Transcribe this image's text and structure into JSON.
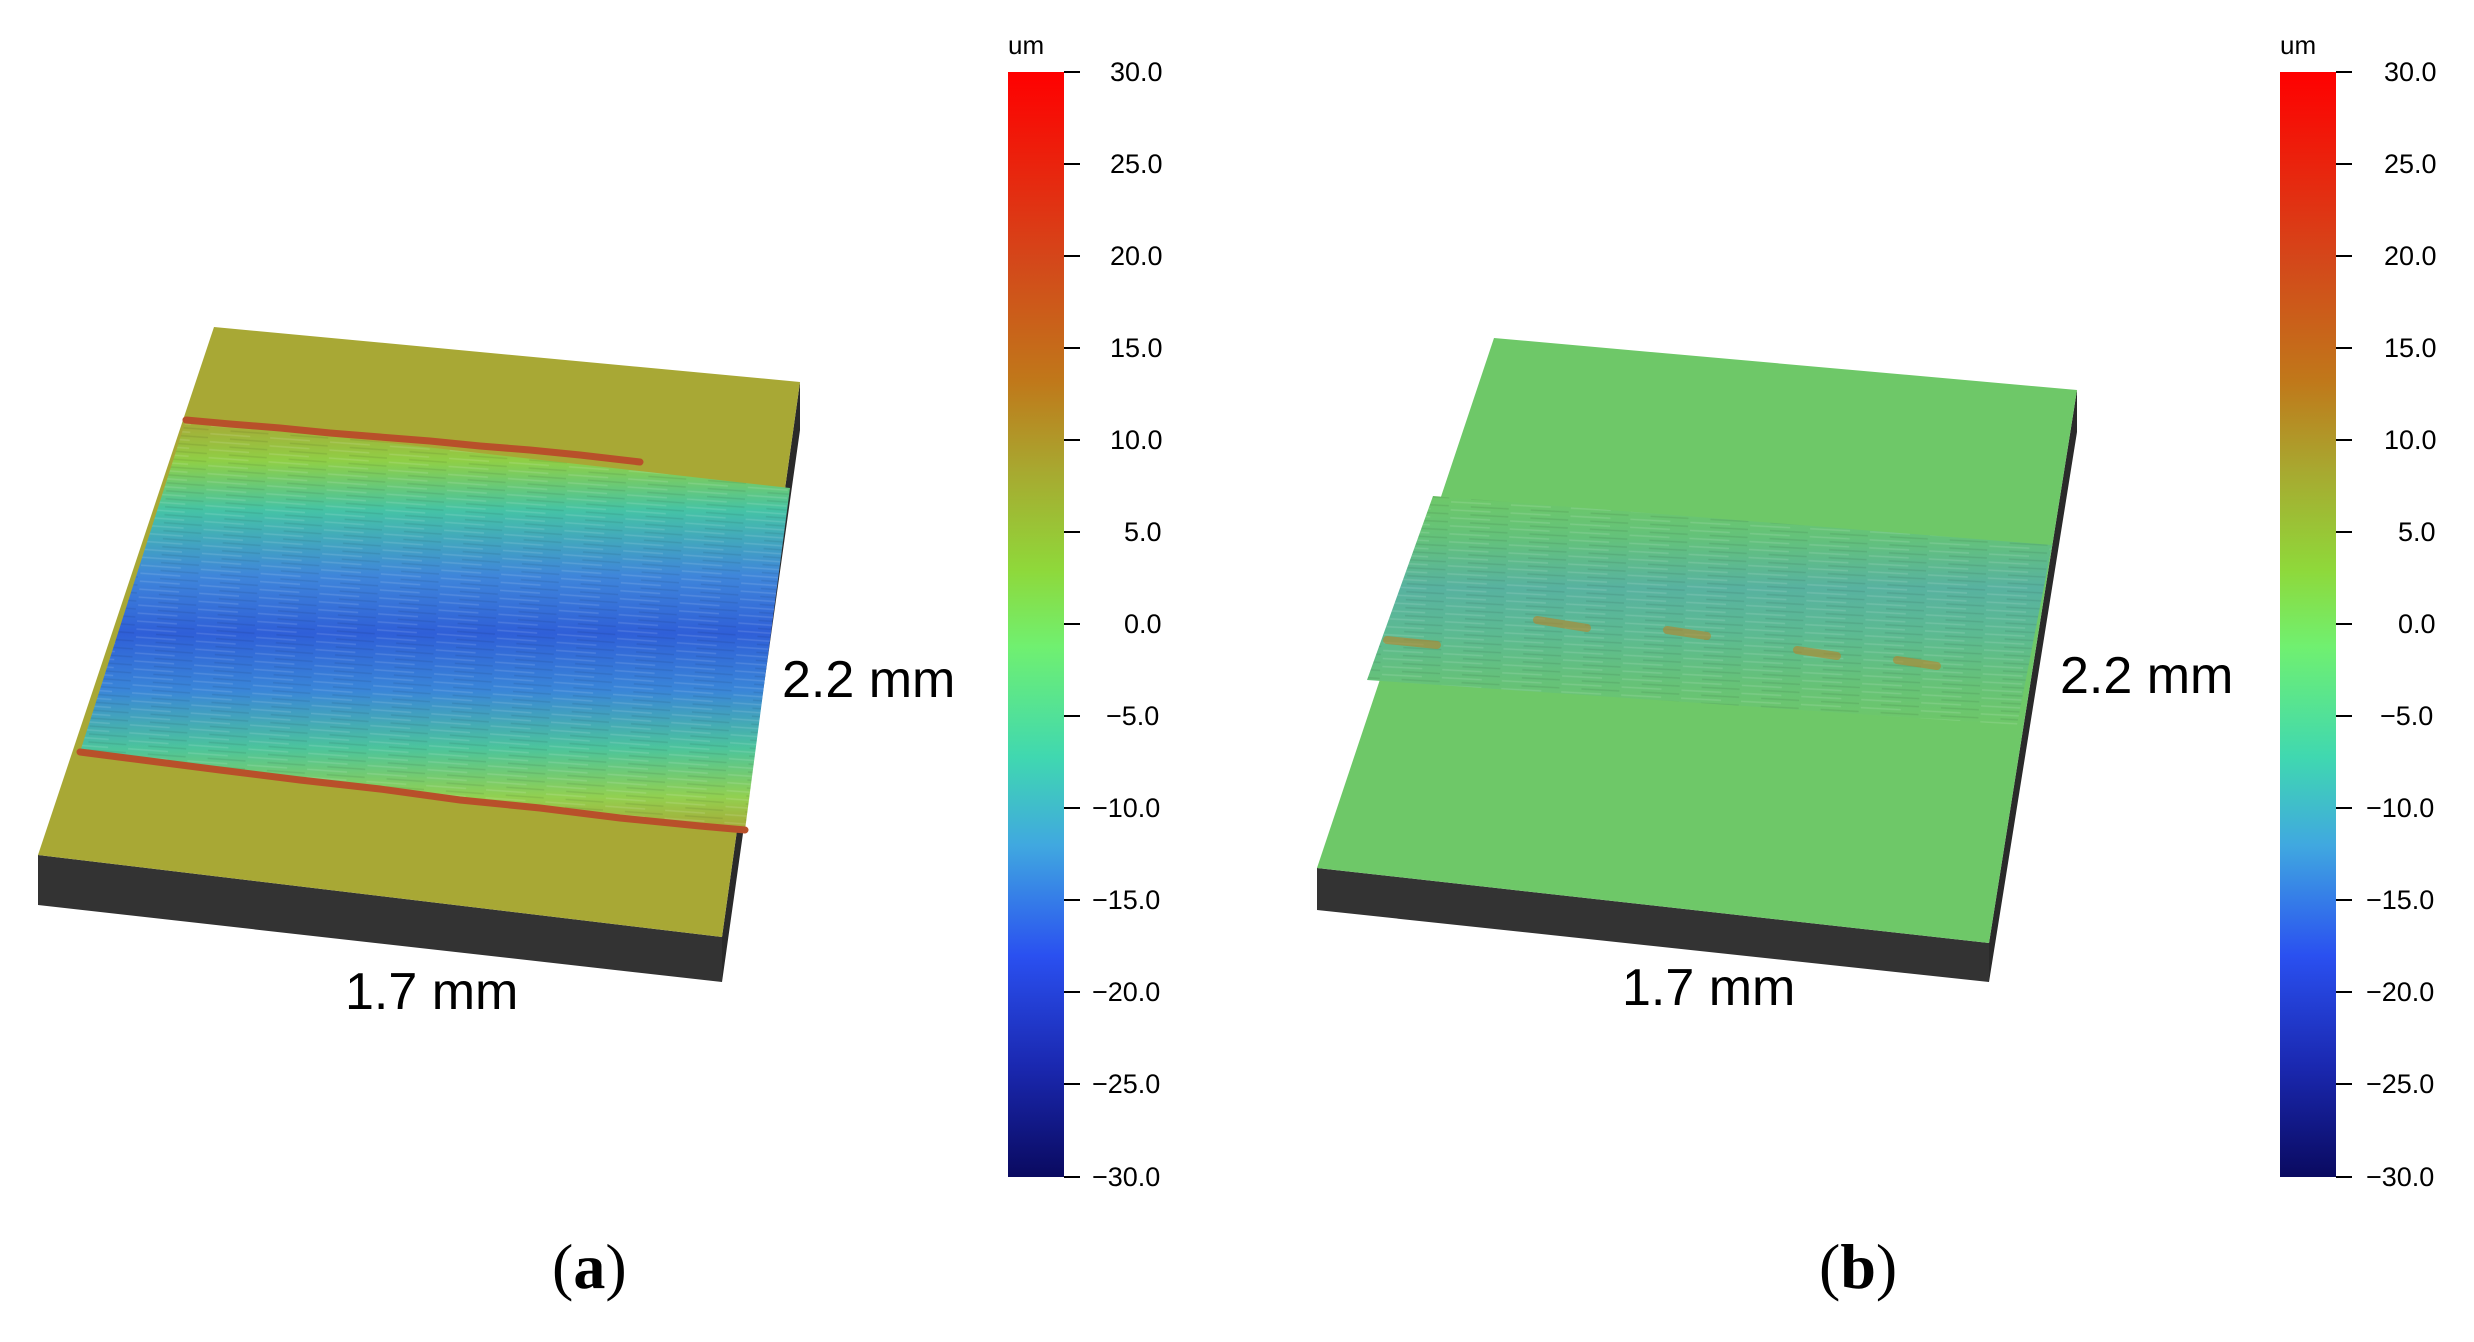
{
  "panels": [
    {
      "id": "a",
      "caption_open": "(",
      "caption_letter": "a",
      "caption_close": ")",
      "width_label": "1.7 mm",
      "height_label": "2.2 mm",
      "colorbar": {
        "unit": "um",
        "ticks": [
          "30.0",
          "25.0",
          "20.0",
          "15.0",
          "10.0",
          "5.0",
          "0.0",
          "−5.0",
          "−10.0",
          "−15.0",
          "−20.0",
          "−25.0",
          "−30.0"
        ]
      },
      "surface": {
        "base_color": "#a8a835",
        "groove_color": "#3a6fd8",
        "groove_mid_color": "#39b8a6",
        "ridge_color": "#b8502a"
      }
    },
    {
      "id": "b",
      "caption_open": "(",
      "caption_letter": "b",
      "caption_close": ")",
      "width_label": "1.7 mm",
      "height_label": "2.2 mm",
      "colorbar": {
        "unit": "um",
        "ticks": [
          "30.0",
          "25.0",
          "20.0",
          "15.0",
          "10.0",
          "5.0",
          "0.0",
          "−5.0",
          "−10.0",
          "−15.0",
          "−20.0",
          "−25.0",
          "−30.0"
        ]
      },
      "surface": {
        "base_color": "#6ec868",
        "groove_color": "#4aa89a",
        "groove_mid_color": "#6cc06a",
        "ridge_color": "#b8842a"
      }
    }
  ]
}
